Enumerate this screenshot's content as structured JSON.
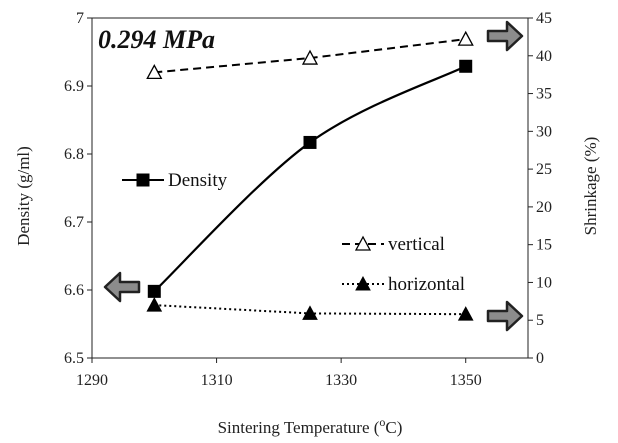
{
  "chart_data": {
    "type": "line",
    "title": "0.294 MPa",
    "xlabel": "Sintering Temperature (",
    "xlabel_sup": "o",
    "xlabel_end": "C)",
    "ylabel": "Density (g/ml)",
    "y2label": "Shrinkage (%)",
    "xlim": [
      1290,
      1360
    ],
    "ylim": [
      6.5,
      7.0
    ],
    "y2lim": [
      0,
      45
    ],
    "xticks": [
      "1290",
      "1310",
      "1330",
      "1350"
    ],
    "xtick_values": [
      1290,
      1310,
      1330,
      1350
    ],
    "yticks": [
      "6.5",
      "6.6",
      "6.7",
      "6.8",
      "6.9",
      "7"
    ],
    "ytick_values": [
      6.5,
      6.6,
      6.7,
      6.8,
      6.9,
      7.0
    ],
    "y2ticks": [
      "0",
      "5",
      "10",
      "15",
      "20",
      "25",
      "30",
      "35",
      "40",
      "45"
    ],
    "y2tick_values": [
      0,
      5,
      10,
      15,
      20,
      25,
      30,
      35,
      40,
      45
    ],
    "grid": false,
    "series": [
      {
        "name": "Density",
        "axis": "left",
        "x": [
          1300,
          1325,
          1350
        ],
        "y": [
          6.598,
          6.817,
          6.929
        ],
        "marker": "filled-square",
        "line": "solid",
        "smooth": true
      },
      {
        "name": "vertical",
        "axis": "right",
        "x": [
          1300,
          1325,
          1350
        ],
        "y": [
          37.8,
          39.7,
          42.2
        ],
        "marker": "open-triangle",
        "line": "dashed"
      },
      {
        "name": "horizontal",
        "axis": "right",
        "x": [
          1300,
          1325,
          1350
        ],
        "y": [
          7.0,
          5.9,
          5.8
        ],
        "marker": "filled-triangle",
        "line": "dotted"
      }
    ],
    "colors": {
      "series": "#000000",
      "arrow_fill": "#8c8c8c",
      "arrow_stroke": "#222222",
      "axis": "#222222"
    }
  }
}
